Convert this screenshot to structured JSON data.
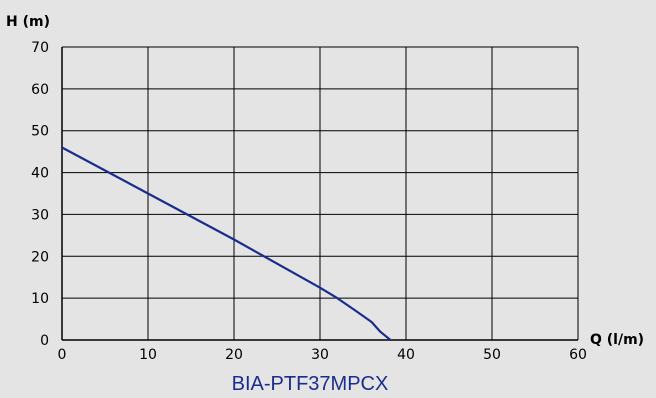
{
  "chart_data": {
    "type": "line",
    "title": "BIA-PTF37MPCX",
    "xlabel": "Q (l/m)",
    "ylabel": "H (m)",
    "xlim": [
      0,
      60
    ],
    "ylim": [
      0,
      70
    ],
    "xticks": [
      0,
      10,
      20,
      30,
      40,
      50,
      60
    ],
    "yticks": [
      0,
      10,
      20,
      30,
      40,
      50,
      60,
      70
    ],
    "grid": true,
    "series": [
      {
        "name": "",
        "color": "#1a2d8c",
        "x": [
          0,
          10,
          20,
          30,
          32,
          34,
          36,
          37,
          38.2
        ],
        "y": [
          46,
          35,
          24,
          12.5,
          10,
          7.2,
          4.3,
          2,
          0
        ]
      }
    ]
  },
  "colors": {
    "background": "#e4e4e4",
    "plot_background": "#e4e4e4",
    "grid": "#000000",
    "curve": "#1a2d8c",
    "title": "#1a2d8c"
  }
}
